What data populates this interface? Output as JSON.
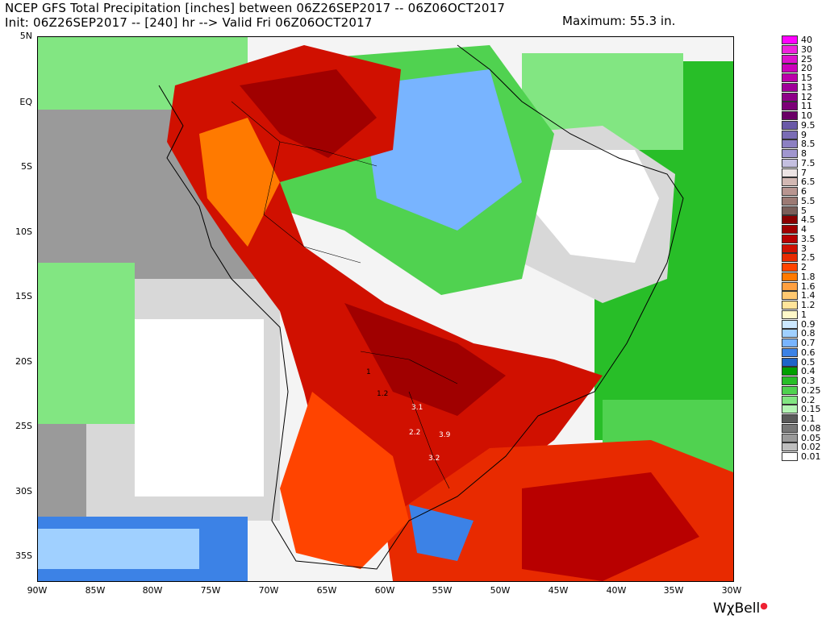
{
  "header": {
    "title_line1": "NCEP GFS Total Precipitation [inches] between 06Z26SEP2017 -- 06Z06OCT2017",
    "title_line2": "Init: 06Z26SEP2017 -- [240] hr --> Valid Fri 06Z06OCT2017",
    "maximum": "Maximum: 55.3 in."
  },
  "axes": {
    "lat_labels": [
      "5N",
      "EQ",
      "5S",
      "10S",
      "15S",
      "20S",
      "25S",
      "30S",
      "35S"
    ],
    "lon_labels": [
      "90W",
      "85W",
      "80W",
      "75W",
      "70W",
      "65W",
      "60W",
      "55W",
      "50W",
      "45W",
      "40W",
      "35W",
      "30W"
    ]
  },
  "legend": {
    "unit": "inches",
    "entries": [
      {
        "label": "40",
        "color": "#ff00ff"
      },
      {
        "label": "30",
        "color": "#ee22dd"
      },
      {
        "label": "25",
        "color": "#dd11cc"
      },
      {
        "label": "20",
        "color": "#cc00bb"
      },
      {
        "label": "15",
        "color": "#bb00aa"
      },
      {
        "label": "13",
        "color": "#a00099"
      },
      {
        "label": "12",
        "color": "#8e0088"
      },
      {
        "label": "11",
        "color": "#7c0077"
      },
      {
        "label": "10",
        "color": "#6a0066"
      },
      {
        "label": "9.5",
        "color": "#6a5aa8"
      },
      {
        "label": "9",
        "color": "#7a6cb5"
      },
      {
        "label": "8.5",
        "color": "#8c80c2"
      },
      {
        "label": "8",
        "color": "#a096cf"
      },
      {
        "label": "7.5",
        "color": "#c4bfe0"
      },
      {
        "label": "7",
        "color": "#ece4e4"
      },
      {
        "label": "6.5",
        "color": "#d2b8b3"
      },
      {
        "label": "6",
        "color": "#b89590"
      },
      {
        "label": "5.5",
        "color": "#9c7a74"
      },
      {
        "label": "5",
        "color": "#7a5e59"
      },
      {
        "label": "4.5",
        "color": "#8a0000"
      },
      {
        "label": "4",
        "color": "#a00000"
      },
      {
        "label": "3.5",
        "color": "#b80000"
      },
      {
        "label": "3",
        "color": "#d01000"
      },
      {
        "label": "2.5",
        "color": "#e82a00"
      },
      {
        "label": "2",
        "color": "#ff4400"
      },
      {
        "label": "1.8",
        "color": "#ff7a00"
      },
      {
        "label": "1.6",
        "color": "#ffa040"
      },
      {
        "label": "1.4",
        "color": "#ffc870"
      },
      {
        "label": "1.2",
        "color": "#ffe49a"
      },
      {
        "label": "1",
        "color": "#fff8c8"
      },
      {
        "label": "0.9",
        "color": "#cce8ff"
      },
      {
        "label": "0.8",
        "color": "#a0d0ff"
      },
      {
        "label": "0.7",
        "color": "#78b4ff"
      },
      {
        "label": "0.6",
        "color": "#3c82e6"
      },
      {
        "label": "0.5",
        "color": "#1e64c8"
      },
      {
        "label": "0.4",
        "color": "#00a000"
      },
      {
        "label": "0.3",
        "color": "#28be28"
      },
      {
        "label": "0.25",
        "color": "#50d250"
      },
      {
        "label": "0.2",
        "color": "#82e682"
      },
      {
        "label": "0.15",
        "color": "#b4f5b4"
      },
      {
        "label": "0.1",
        "color": "#5a5a5a"
      },
      {
        "label": "0.08",
        "color": "#787878"
      },
      {
        "label": "0.05",
        "color": "#9a9a9a"
      },
      {
        "label": "0.02",
        "color": "#bebebe"
      },
      {
        "label": "0.01",
        "color": "#ffffff"
      }
    ]
  },
  "annotations": [
    "1",
    "1.2",
    "3.1",
    "2.2",
    "3.9",
    "3.2"
  ],
  "branding": {
    "logo_text": "WχBell"
  }
}
